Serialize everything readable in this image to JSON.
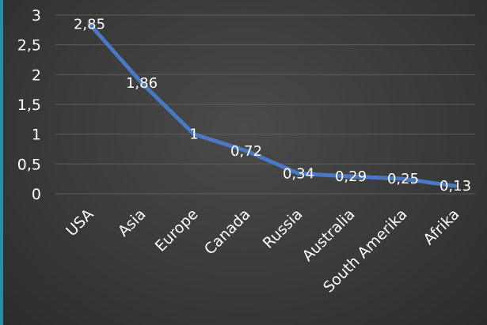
{
  "chart_data": {
    "type": "line",
    "title": "",
    "xlabel": "",
    "ylabel": "",
    "categories": [
      "USA",
      "Asia",
      "Europe",
      "Canada",
      "Russia",
      "Australia",
      "South Amerika",
      "Afrika"
    ],
    "series": [
      {
        "values": [
          2.85,
          1.86,
          1,
          0.72,
          0.34,
          0.29,
          0.25,
          0.13
        ],
        "data_labels": [
          "2,85",
          "1,86",
          "1",
          "0,72",
          "0,34",
          "0,29",
          "0,25",
          "0,13"
        ]
      }
    ],
    "ylim": [
      0,
      3
    ],
    "yticks": [
      0,
      0.5,
      1,
      1.5,
      2,
      2.5,
      3
    ],
    "ytick_labels": [
      "0",
      "0,5",
      "1",
      "1,5",
      "2",
      "2,5",
      "3"
    ],
    "grid": true,
    "legend": "none",
    "colors": {
      "series": "#4a78c2",
      "background": "#3c3c3c",
      "grid": "#5e5e5e",
      "text": "#ffffff",
      "accent": "#2a8f9e"
    }
  }
}
